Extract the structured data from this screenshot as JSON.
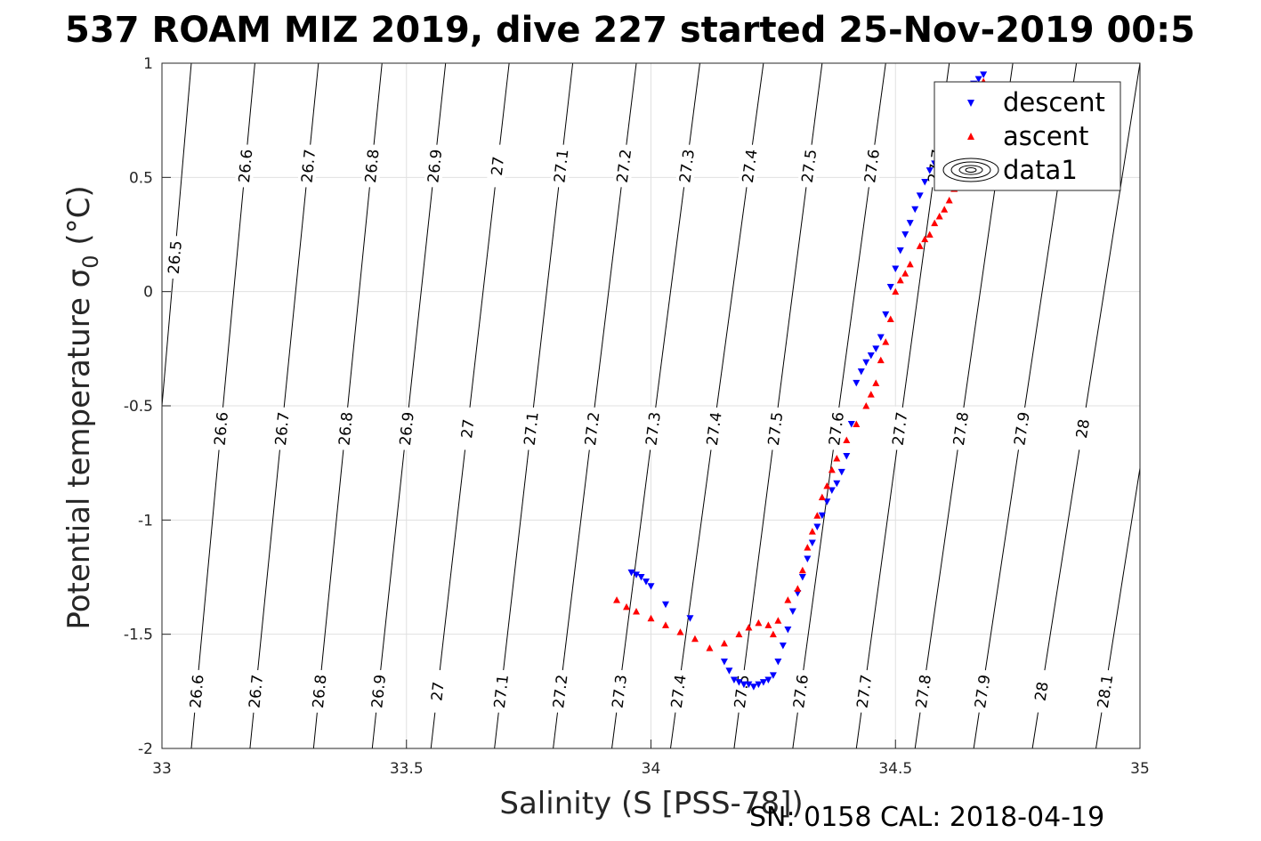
{
  "chart_data": {
    "type": "scatter",
    "title": "537 ROAM MIZ 2019, dive 227 started 25-Nov-2019 00:5",
    "xlabel": "Salinity (S [PSS-78])",
    "ylabel_main": "Potential temperature ",
    "ylabel_sigma": "σ",
    "ylabel_sub": "0",
    "ylabel_unit": " (°C)",
    "footer": "SN: 0158  CAL: 2018-04-19",
    "xlim": [
      33,
      35
    ],
    "ylim": [
      -2,
      1
    ],
    "xticks": [
      "33",
      "33.5",
      "34",
      "34.5",
      "35"
    ],
    "yticks": [
      "1",
      "0.5",
      "0",
      "-0.5",
      "-1",
      "-1.5",
      "-2"
    ],
    "grid": true,
    "legend_position": "top-right",
    "legend": [
      "descent",
      "ascent",
      "data1"
    ],
    "contours": {
      "levels": [
        26.5,
        26.6,
        26.7,
        26.8,
        26.9,
        27.0,
        27.1,
        27.2,
        27.3,
        27.4,
        27.5,
        27.6,
        27.7,
        27.8,
        27.9,
        28.0,
        28.1
      ],
      "labels": [
        "26.5",
        "26.6",
        "26.7",
        "26.8",
        "26.9",
        "27",
        "27.1",
        "27.2",
        "27.3",
        "27.4",
        "27.5",
        "27.6",
        "27.7",
        "27.8",
        "27.9",
        "28",
        "28.1"
      ],
      "salinity_at_minus2": [
        32.94,
        33.06,
        33.18,
        33.31,
        33.43,
        33.55,
        33.68,
        33.8,
        33.92,
        34.04,
        34.17,
        34.29,
        34.42,
        34.54,
        34.66,
        34.78,
        34.91
      ],
      "salinity_at_plus1": [
        33.06,
        33.19,
        33.32,
        33.45,
        33.58,
        33.71,
        33.84,
        33.97,
        34.1,
        34.23,
        34.35,
        34.48,
        34.61,
        34.74,
        34.87,
        35.0,
        35.13
      ],
      "label_rows": [
        {
          "theta": 0.15,
          "levels": [
            "26.5"
          ]
        },
        {
          "theta": 0.55,
          "levels": [
            "26.6",
            "26.7",
            "26.8",
            "26.9",
            "27",
            "27.1",
            "27.2",
            "27.3",
            "27.4",
            "27.5",
            "27.6",
            "27.7"
          ]
        },
        {
          "theta": -0.6,
          "levels": [
            "26.6",
            "26.7",
            "26.8",
            "26.9",
            "27",
            "27.1",
            "27.2",
            "27.3",
            "27.4",
            "27.5",
            "27.6",
            "27.7",
            "27.8",
            "27.9",
            "28",
            "28.1"
          ]
        },
        {
          "theta": -1.75,
          "levels": [
            "26.6",
            "26.7",
            "26.8",
            "26.9",
            "27",
            "27.1",
            "27.2",
            "27.3",
            "27.4",
            "27.5",
            "27.6",
            "27.7",
            "27.8",
            "27.9",
            "28",
            "28.1"
          ]
        }
      ]
    },
    "series": [
      {
        "name": "descent",
        "marker": "triangle-down",
        "color": "#0000ff",
        "x": [
          33.96,
          33.97,
          33.98,
          33.99,
          34.0,
          34.03,
          34.08,
          34.15,
          34.16,
          34.17,
          34.18,
          34.19,
          34.2,
          34.21,
          34.22,
          34.23,
          34.24,
          34.25,
          34.26,
          34.27,
          34.28,
          34.29,
          34.3,
          34.31,
          34.32,
          34.33,
          34.34,
          34.35,
          34.36,
          34.37,
          34.38,
          34.39,
          34.4,
          34.41,
          34.42,
          34.43,
          34.44,
          34.45,
          34.46,
          34.47,
          34.48,
          34.49,
          34.5,
          34.51,
          34.52,
          34.53,
          34.54,
          34.55,
          34.56,
          34.57,
          34.58,
          34.59,
          34.6,
          34.61,
          34.62,
          34.63,
          34.64,
          34.65,
          34.66,
          34.67,
          34.68
        ],
        "y": [
          -1.23,
          -1.24,
          -1.25,
          -1.27,
          -1.29,
          -1.37,
          -1.43,
          -1.62,
          -1.66,
          -1.7,
          -1.71,
          -1.72,
          -1.72,
          -1.73,
          -1.72,
          -1.71,
          -1.7,
          -1.68,
          -1.62,
          -1.55,
          -1.48,
          -1.4,
          -1.32,
          -1.25,
          -1.17,
          -1.1,
          -1.03,
          -0.98,
          -0.92,
          -0.87,
          -0.84,
          -0.79,
          -0.72,
          -0.58,
          -0.4,
          -0.35,
          -0.31,
          -0.28,
          -0.25,
          -0.2,
          -0.1,
          0.02,
          0.1,
          0.18,
          0.25,
          0.3,
          0.36,
          0.42,
          0.48,
          0.53,
          0.56,
          0.6,
          0.65,
          0.7,
          0.74,
          0.78,
          0.83,
          0.87,
          0.91,
          0.93,
          0.95
        ]
      },
      {
        "name": "ascent",
        "marker": "triangle-up",
        "color": "#ff0000",
        "x": [
          33.93,
          33.95,
          33.97,
          34.0,
          34.03,
          34.06,
          34.09,
          34.12,
          34.15,
          34.18,
          34.2,
          34.22,
          34.24,
          34.25,
          34.26,
          34.28,
          34.3,
          34.31,
          34.32,
          34.33,
          34.34,
          34.35,
          34.36,
          34.37,
          34.38,
          34.4,
          34.42,
          34.44,
          34.45,
          34.46,
          34.47,
          34.48,
          34.49,
          34.5,
          34.51,
          34.52,
          34.53,
          34.55,
          34.56,
          34.57,
          34.58,
          34.59,
          34.6,
          34.61,
          34.62,
          34.63,
          34.64,
          34.65,
          34.66,
          34.67,
          34.68
        ],
        "y": [
          -1.35,
          -1.38,
          -1.4,
          -1.43,
          -1.46,
          -1.49,
          -1.52,
          -1.56,
          -1.54,
          -1.5,
          -1.47,
          -1.45,
          -1.46,
          -1.5,
          -1.44,
          -1.35,
          -1.3,
          -1.22,
          -1.12,
          -1.05,
          -0.98,
          -0.9,
          -0.85,
          -0.78,
          -0.73,
          -0.65,
          -0.58,
          -0.5,
          -0.45,
          -0.4,
          -0.3,
          -0.22,
          -0.12,
          0.0,
          0.05,
          0.08,
          0.12,
          0.2,
          0.23,
          0.25,
          0.3,
          0.33,
          0.36,
          0.4,
          0.45,
          0.52,
          0.6,
          0.7,
          0.8,
          0.88,
          0.92
        ]
      }
    ]
  }
}
